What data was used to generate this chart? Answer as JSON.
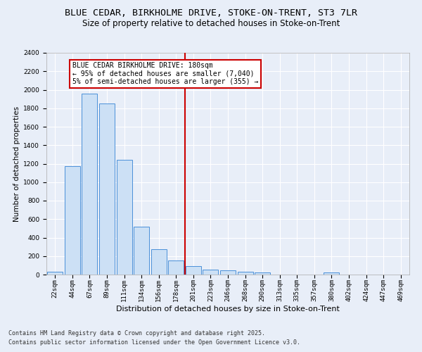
{
  "title": "BLUE CEDAR, BIRKHOLME DRIVE, STOKE-ON-TRENT, ST3 7LR",
  "subtitle": "Size of property relative to detached houses in Stoke-on-Trent",
  "xlabel": "Distribution of detached houses by size in Stoke-on-Trent",
  "ylabel": "Number of detached properties",
  "categories": [
    "22sqm",
    "44sqm",
    "67sqm",
    "89sqm",
    "111sqm",
    "134sqm",
    "156sqm",
    "178sqm",
    "201sqm",
    "223sqm",
    "246sqm",
    "268sqm",
    "290sqm",
    "313sqm",
    "335sqm",
    "357sqm",
    "380sqm",
    "402sqm",
    "424sqm",
    "447sqm",
    "469sqm"
  ],
  "values": [
    30,
    1170,
    1960,
    1850,
    1240,
    520,
    275,
    155,
    90,
    50,
    42,
    30,
    20,
    0,
    0,
    0,
    20,
    0,
    0,
    0,
    0
  ],
  "bar_color": "#cce0f5",
  "bar_edge_color": "#4a90d9",
  "vline_x_index": 7.5,
  "vline_color": "#cc0000",
  "annotation_text": "BLUE CEDAR BIRKHOLME DRIVE: 180sqm\n← 95% of detached houses are smaller (7,040)\n5% of semi-detached houses are larger (355) →",
  "annotation_box_color": "#cc0000",
  "ylim": [
    0,
    2400
  ],
  "yticks": [
    0,
    200,
    400,
    600,
    800,
    1000,
    1200,
    1400,
    1600,
    1800,
    2000,
    2200,
    2400
  ],
  "footer1": "Contains HM Land Registry data © Crown copyright and database right 2025.",
  "footer2": "Contains public sector information licensed under the Open Government Licence v3.0.",
  "bg_color": "#e8eef8",
  "plot_bg_color": "#e8eef8",
  "grid_color": "#ffffff",
  "title_fontsize": 9.5,
  "subtitle_fontsize": 8.5,
  "xlabel_fontsize": 8,
  "ylabel_fontsize": 7.5,
  "tick_fontsize": 6.5,
  "annotation_fontsize": 7,
  "footer_fontsize": 6
}
